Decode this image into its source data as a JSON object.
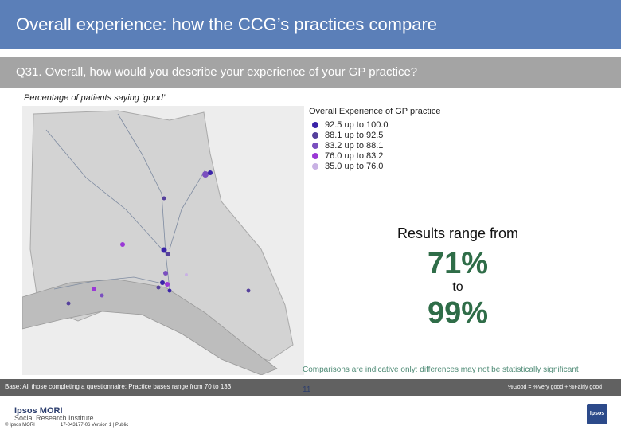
{
  "header": {
    "title": "Overall experience: how the CCG’s practices compare",
    "question": "Q31. Overall, how would you describe your experience of your GP practice?",
    "subtitle": "Percentage of patients saying ‘good’"
  },
  "legend": {
    "title": "Overall Experience of GP practice",
    "items": [
      {
        "label": "92.5 up to 100.0",
        "color": "#3a23a8"
      },
      {
        "label": "88.1 up to   92.5",
        "color": "#55409c"
      },
      {
        "label": "83.2 up to   88.1",
        "color": "#7a4fbf"
      },
      {
        "label": "76.0 up to   83.2",
        "color": "#9a38d6"
      },
      {
        "label": "35.0 up to   76.0",
        "color": "#c9b2e4"
      }
    ]
  },
  "results": {
    "intro": "Results range from",
    "min": "71%",
    "to": "to",
    "max": "99%"
  },
  "comparison_note": "Comparisons are indicative only: differences may not be statistically significant",
  "footer": {
    "base": "Base: All those completing a questionnaire: Practice bases range from 70 to 133",
    "formula": "%Good = %Very good + %Fairly good",
    "page_number": "11",
    "brand_line1": "Ipsos MORI",
    "brand_line2": "Social Research Institute",
    "copyright": "© Ipsos MORI",
    "version": "17-043177-06 Version 1 | Public",
    "logo_text": "Ipsos"
  }
}
